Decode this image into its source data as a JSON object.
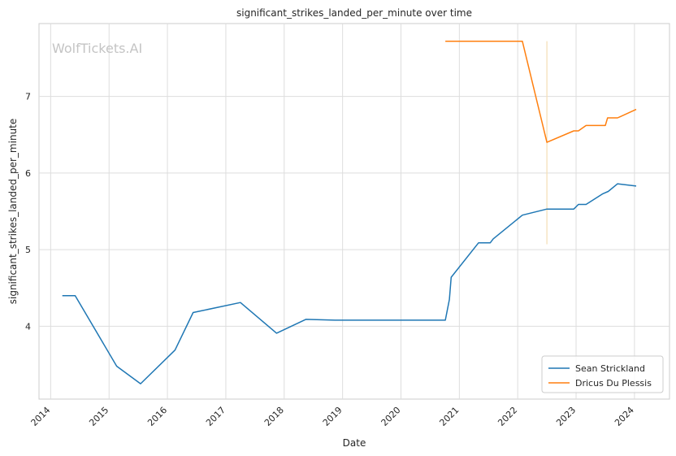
{
  "chart_data": {
    "type": "line",
    "title": "significant_strikes_landed_per_minute over time",
    "xlabel": "Date",
    "ylabel": "significant_strikes_landed_per_minute",
    "watermark": "WolfTickets.AI",
    "xlim": [
      2013.8,
      2024.6
    ],
    "ylim": [
      3.05,
      7.95
    ],
    "x_ticks": [
      2014,
      2015,
      2016,
      2017,
      2018,
      2019,
      2020,
      2021,
      2022,
      2023,
      2024
    ],
    "x_tick_labels": [
      "2014",
      "2015",
      "2016",
      "2017",
      "2018",
      "2019",
      "2020",
      "2021",
      "2022",
      "2023",
      "2024"
    ],
    "y_ticks": [
      4,
      5,
      6,
      7
    ],
    "y_tick_labels": [
      "4",
      "5",
      "6",
      "7"
    ],
    "grid": true,
    "legend_position": "bottom-right",
    "series": [
      {
        "name": "Sean Strickland",
        "color": "#1f77b4",
        "x": [
          2014.2,
          2014.42,
          2015.13,
          2015.54,
          2016.13,
          2016.44,
          2017.25,
          2017.87,
          2018.37,
          2018.87,
          2020.76,
          2020.83,
          2020.86,
          2021.33,
          2021.53,
          2021.58,
          2022.08,
          2022.5,
          2022.96,
          2023.04,
          2023.17,
          2023.46,
          2023.55,
          2023.71,
          2024.03
        ],
        "y": [
          4.4,
          4.4,
          3.48,
          3.25,
          3.69,
          4.18,
          4.31,
          3.91,
          4.09,
          4.08,
          4.08,
          4.35,
          4.64,
          5.09,
          5.09,
          5.14,
          5.45,
          5.53,
          5.53,
          5.59,
          5.59,
          5.73,
          5.76,
          5.86,
          5.83
        ]
      },
      {
        "name": "Dricus Du Plessis",
        "color": "#ff7f0e",
        "x": [
          2020.76,
          2022.08,
          2022.5,
          2022.96,
          2023.04,
          2023.17,
          2023.5,
          2023.54,
          2023.71,
          2024.03
        ],
        "y": [
          7.72,
          7.72,
          6.4,
          6.55,
          6.55,
          6.62,
          6.62,
          6.72,
          6.72,
          6.83
        ]
      }
    ],
    "annotations": [
      {
        "type": "vertical-line",
        "x": 2022.5,
        "y_from": 5.07,
        "y_to": 7.72,
        "color": "#f5deb3"
      }
    ]
  }
}
